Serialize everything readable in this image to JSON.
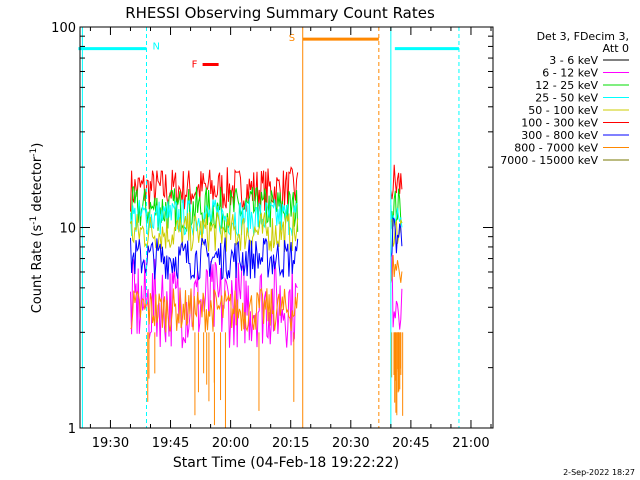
{
  "chart_data": {
    "type": "line",
    "title": "RHESSI Observing Summary Count Rates",
    "xlabel": "Start Time (04-Feb-18 19:22:22)",
    "ylabel_main": "Count Rate (s",
    "ylabel_sup1": "-1",
    "ylabel_mid": " detector",
    "ylabel_sup2": "-1",
    "ylabel_end": ")",
    "yscale": "log",
    "ylim": [
      1,
      100
    ],
    "xlim_minutes": [
      1162.4,
      1265.5
    ],
    "x_ticks": [
      {
        "label": "19:30",
        "minute": 1170
      },
      {
        "label": "19:45",
        "minute": 1185
      },
      {
        "label": "20:00",
        "minute": 1200
      },
      {
        "label": "20:15",
        "minute": 1215
      },
      {
        "label": "20:30",
        "minute": 1230
      },
      {
        "label": "20:45",
        "minute": 1245
      },
      {
        "label": "21:00",
        "minute": 1260
      }
    ],
    "y_ticks": [
      {
        "label": "1",
        "value": 1
      },
      {
        "label": "10",
        "value": 10
      },
      {
        "label": "100",
        "value": 100
      }
    ],
    "legend": {
      "position": "top-right",
      "header": [
        "Det 3, FDecim 3,",
        "Att 0"
      ],
      "entries": [
        {
          "label": "3 - 6 keV",
          "color": "#000000"
        },
        {
          "label": "6 - 12 keV",
          "color": "#ff00ff"
        },
        {
          "label": "12 - 25 keV",
          "color": "#00dd00"
        },
        {
          "label": "25 - 50 keV",
          "color": "#00ffff"
        },
        {
          "label": "50 - 100 keV",
          "color": "#cccc00"
        },
        {
          "label": "100 - 300 keV",
          "color": "#ff0000"
        },
        {
          "label": "300 - 800 keV",
          "color": "#0000ff"
        },
        {
          "label": "800 - 7000 keV",
          "color": "#ff8800"
        },
        {
          "label": "7000 - 15000 keV",
          "color": "#777700"
        }
      ]
    },
    "data_segments": [
      {
        "start": "19:35",
        "end": "20:17"
      },
      {
        "start": "20:40",
        "end": "20:43"
      }
    ],
    "series": [
      {
        "name": "100 - 300 keV",
        "color": "#ff0000",
        "levels": [
          [
            12,
            20
          ],
          [
            12,
            22
          ]
        ]
      },
      {
        "name": "12 - 25 keV",
        "color": "#00dd00",
        "levels": [
          [
            9.5,
            16
          ],
          [
            10,
            16
          ]
        ]
      },
      {
        "name": "25 - 50 keV",
        "color": "#00ffff",
        "levels": [
          [
            9,
            14
          ],
          [
            9,
            14
          ]
        ]
      },
      {
        "name": "50 - 100 keV",
        "color": "#cccc00",
        "levels": [
          [
            7.5,
            12
          ],
          [
            8,
            12
          ]
        ]
      },
      {
        "name": "6 - 12 keV",
        "color": "#ff00ff",
        "levels": [
          [
            2.5,
            7
          ],
          [
            3,
            8
          ]
        ]
      },
      {
        "name": "300 - 800 keV",
        "color": "#0000ff",
        "levels": [
          [
            5.5,
            9
          ],
          [
            7,
            12
          ]
        ]
      },
      {
        "name": "800 - 7000 keV",
        "color": "#ff8800",
        "levels": [
          [
            3,
            5
          ],
          [
            5,
            8
          ]
        ]
      }
    ],
    "flags": {
      "night_label": "N",
      "flare_label": "F",
      "saa_label": "S",
      "night_intervals": [
        [
          "19:22",
          "19:39"
        ],
        [
          "20:41",
          "20:57"
        ]
      ],
      "night_value": 78,
      "flare_interval": [
        "19:53",
        "19:57"
      ],
      "flare_value": 65,
      "saa_interval": [
        "20:18",
        "20:37"
      ],
      "saa_value": 87,
      "night_edges": [
        "19:23",
        "19:39",
        "20:40",
        "20:57"
      ],
      "saa_edges": [
        "20:18",
        "20:37"
      ]
    }
  },
  "footer": {
    "date_stamp": "2-Sep-2022 18:27"
  }
}
